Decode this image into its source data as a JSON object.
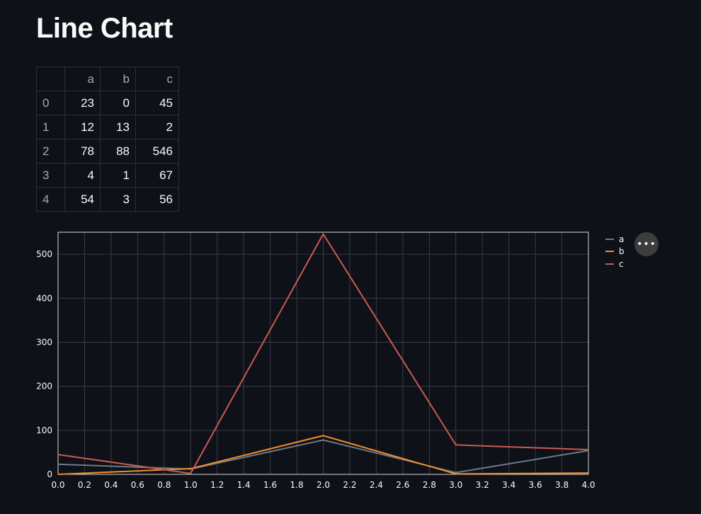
{
  "page": {
    "title": "Line Chart"
  },
  "table": {
    "columns": [
      "a",
      "b",
      "c"
    ],
    "rows": [
      {
        "index": "0",
        "a": "23",
        "b": "0",
        "c": "45"
      },
      {
        "index": "1",
        "a": "12",
        "b": "13",
        "c": "2"
      },
      {
        "index": "2",
        "a": "78",
        "b": "88",
        "c": "546"
      },
      {
        "index": "3",
        "a": "4",
        "b": "1",
        "c": "67"
      },
      {
        "index": "4",
        "a": "54",
        "b": "3",
        "c": "56"
      }
    ]
  },
  "menu": {
    "icon": "more-horizontal-icon",
    "glyph": "•••"
  },
  "chart_data": {
    "type": "line",
    "x": [
      0,
      1,
      2,
      3,
      4
    ],
    "series": [
      {
        "name": "a",
        "values": [
          23,
          12,
          78,
          4,
          54
        ],
        "color": "#6c7a8b"
      },
      {
        "name": "b",
        "values": [
          0,
          13,
          88,
          1,
          3
        ],
        "color": "#f28e2b"
      },
      {
        "name": "c",
        "values": [
          45,
          2,
          546,
          67,
          56
        ],
        "color": "#c85a54"
      }
    ],
    "xlim": [
      0,
      4
    ],
    "ylim": [
      0,
      550
    ],
    "x_ticks": [
      "0.0",
      "0.2",
      "0.4",
      "0.6",
      "0.8",
      "1.0",
      "1.2",
      "1.4",
      "1.6",
      "1.8",
      "2.0",
      "2.2",
      "2.4",
      "2.6",
      "2.8",
      "3.0",
      "3.2",
      "3.4",
      "3.6",
      "3.8",
      "4.0"
    ],
    "y_ticks": [
      "0",
      "100",
      "200",
      "300",
      "400",
      "500"
    ],
    "grid": true,
    "legend": "top-right",
    "background": "#0e1117",
    "grid_color": "#3a3d45"
  }
}
